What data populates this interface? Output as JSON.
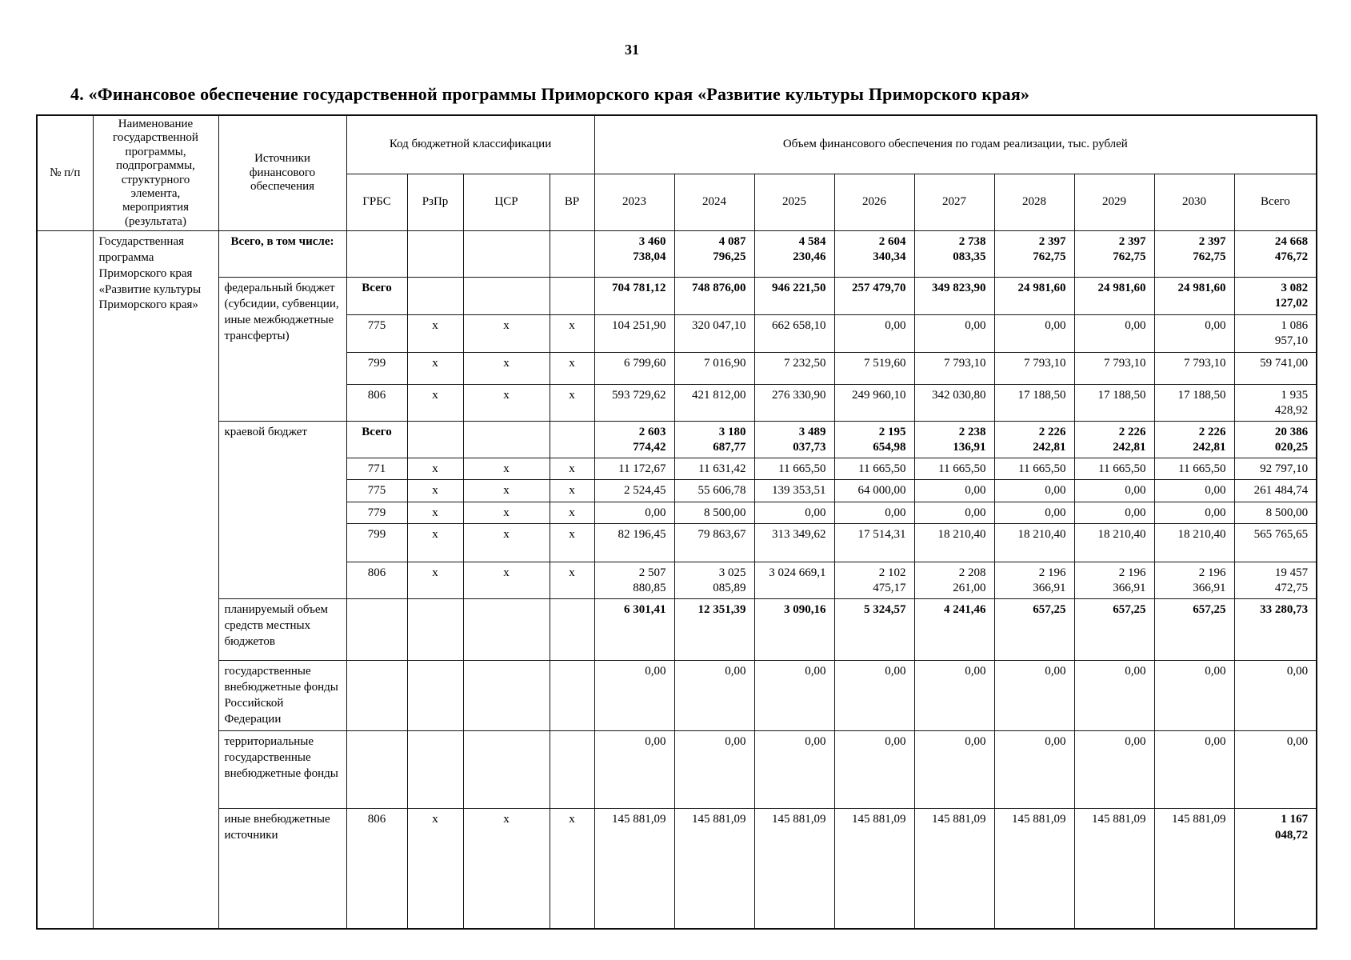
{
  "page": {
    "number": "31",
    "title": "4. «Финансовое обеспечение государственной программы Приморского края «Развитие культуры Приморского края»"
  },
  "table": {
    "header": {
      "col_num": "№ п/п",
      "col_name": "Наименование государственной программы, подпрограммы, структурного элемента, мероприятия (результата)",
      "col_sources": "Источники финансового обеспечения",
      "group_budget_code": "Код бюджетной классификации",
      "budget_code_cols": [
        "ГРБС",
        "РзПр",
        "ЦСР",
        "ВР"
      ],
      "group_volume": "Объем финансового обеспечения по годам реализации, тыс. рублей",
      "year_cols": [
        "2023",
        "2024",
        "2025",
        "2026",
        "2027",
        "2028",
        "2029",
        "2030",
        "Всего"
      ]
    },
    "program_name": "Государственная программа Приморского края «Развитие культуры Приморского края»",
    "rows": [
      {
        "source": "Всего, в том числе:",
        "source_bold": true,
        "source_center": true,
        "grbs": "",
        "rzpr": "",
        "csr": "",
        "vr": "",
        "values_bold": true,
        "values": [
          "3 460 738,04",
          "4 087 796,25",
          "4 584 230,46",
          "2 604 340,34",
          "2 738 083,35",
          "2 397 762,75",
          "2 397 762,75",
          "2 397 762,75",
          "24 668 476,72"
        ]
      },
      {
        "source": "федеральный бюджет (субсидии, субвенции, иные межбюджетные трансферты)",
        "source_rowspan": 4,
        "grbs": "Всего",
        "grbs_bold": true,
        "rzpr": "",
        "csr": "",
        "vr": "",
        "values_bold": true,
        "values": [
          "704 781,12",
          "748 876,00",
          "946 221,50",
          "257 479,70",
          "349 823,90",
          "24 981,60",
          "24 981,60",
          "24 981,60",
          "3 082 127,02"
        ]
      },
      {
        "grbs": "775",
        "rzpr": "x",
        "csr": "x",
        "vr": "x",
        "values": [
          "104 251,90",
          "320 047,10",
          "662 658,10",
          "0,00",
          "0,00",
          "0,00",
          "0,00",
          "0,00",
          "1 086 957,10"
        ]
      },
      {
        "grbs": "799",
        "rzpr": "x",
        "csr": "x",
        "vr": "x",
        "values": [
          "6 799,60",
          "7 016,90",
          "7 232,50",
          "7 519,60",
          "7 793,10",
          "7 793,10",
          "7 793,10",
          "7 793,10",
          "59 741,00"
        ]
      },
      {
        "grbs": "806",
        "rzpr": "x",
        "csr": "x",
        "vr": "x",
        "values": [
          "593 729,62",
          "421 812,00",
          "276 330,90",
          "249 960,10",
          "342 030,80",
          "17 188,50",
          "17 188,50",
          "17 188,50",
          "1 935 428,92"
        ]
      },
      {
        "source": "краевой бюджет",
        "source_rowspan": 6,
        "grbs": "Всего",
        "grbs_bold": true,
        "rzpr": "",
        "csr": "",
        "vr": "",
        "values_bold": true,
        "values": [
          "2 603 774,42",
          "3 180 687,77",
          "3 489 037,73",
          "2 195 654,98",
          "2 238 136,91",
          "2 226 242,81",
          "2 226 242,81",
          "2 226 242,81",
          "20 386 020,25"
        ]
      },
      {
        "grbs": "771",
        "rzpr": "x",
        "csr": "x",
        "vr": "x",
        "values": [
          "11 172,67",
          "11 631,42",
          "11 665,50",
          "11 665,50",
          "11 665,50",
          "11 665,50",
          "11 665,50",
          "11 665,50",
          "92 797,10"
        ]
      },
      {
        "grbs": "775",
        "rzpr": "x",
        "csr": "x",
        "vr": "x",
        "values": [
          "2 524,45",
          "55 606,78",
          "139 353,51",
          "64 000,00",
          "0,00",
          "0,00",
          "0,00",
          "0,00",
          "261 484,74"
        ]
      },
      {
        "grbs": "779",
        "rzpr": "x",
        "csr": "x",
        "vr": "x",
        "values": [
          "0,00",
          "8 500,00",
          "0,00",
          "0,00",
          "0,00",
          "0,00",
          "0,00",
          "0,00",
          "8 500,00"
        ]
      },
      {
        "grbs": "799",
        "rzpr": "x",
        "csr": "x",
        "vr": "x",
        "values": [
          "82 196,45",
          "79 863,67",
          "313 349,62",
          "17 514,31",
          "18 210,40",
          "18 210,40",
          "18 210,40",
          "18 210,40",
          "565 765,65"
        ]
      },
      {
        "grbs": "806",
        "rzpr": "x",
        "csr": "x",
        "vr": "x",
        "values": [
          "2 507 880,85",
          "3 025 085,89",
          "3 024 669,1",
          "2 102 475,17",
          "2 208 261,00",
          "2 196 366,91",
          "2 196 366,91",
          "2 196 366,91",
          "19 457 472,75"
        ]
      },
      {
        "source": "планируемый объем средств местных бюджетов",
        "grbs": "",
        "rzpr": "",
        "csr": "",
        "vr": "",
        "values_bold": true,
        "values": [
          "6 301,41",
          "12 351,39",
          "3 090,16",
          "5 324,57",
          "4 241,46",
          "657,25",
          "657,25",
          "657,25",
          "33 280,73"
        ]
      },
      {
        "source": "государственные внебюджетные фонды Российской Федерации",
        "grbs": "",
        "rzpr": "",
        "csr": "",
        "vr": "",
        "values": [
          "0,00",
          "0,00",
          "0,00",
          "0,00",
          "0,00",
          "0,00",
          "0,00",
          "0,00",
          "0,00"
        ]
      },
      {
        "source": "территориальные государственные внебюджетные фонды",
        "grbs": "",
        "rzpr": "",
        "csr": "",
        "vr": "",
        "values": [
          "0,00",
          "0,00",
          "0,00",
          "0,00",
          "0,00",
          "0,00",
          "0,00",
          "0,00",
          "0,00"
        ]
      },
      {
        "source": "иные внебюджетные источники",
        "grbs": "806",
        "rzpr": "x",
        "csr": "x",
        "vr": "x",
        "total_bold": true,
        "values": [
          "145 881,09",
          "145 881,09",
          "145 881,09",
          "145 881,09",
          "145 881,09",
          "145 881,09",
          "145 881,09",
          "145 881,09",
          "1 167 048,72"
        ]
      }
    ]
  }
}
